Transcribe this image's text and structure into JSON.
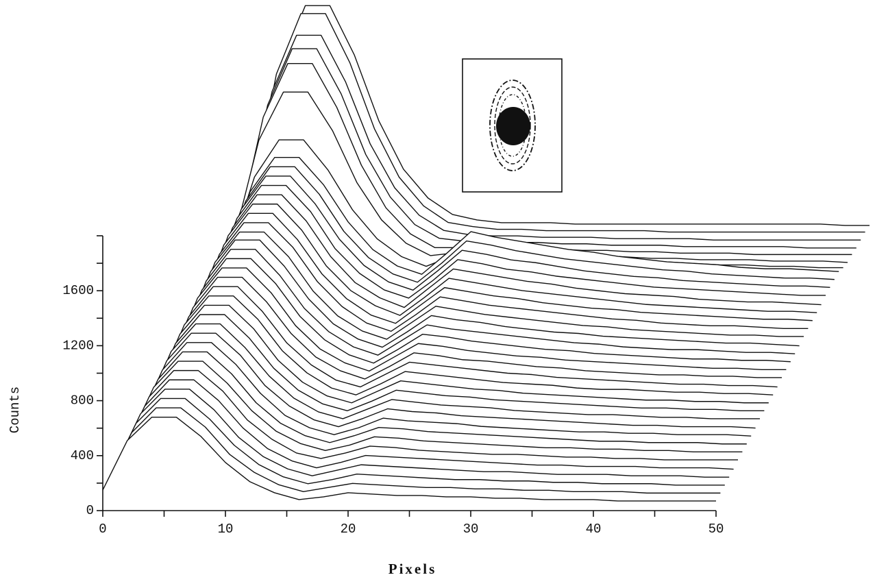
{
  "chart_data": {
    "type": "waterfall",
    "x_label": "Pixels",
    "y_label": "Counts",
    "color": "#111111",
    "xlim": [
      0,
      50
    ],
    "xticks": [
      0,
      10,
      20,
      30,
      40,
      50
    ],
    "xminor": [
      5,
      15,
      25,
      35,
      45
    ],
    "ylim": [
      0,
      2000
    ],
    "yticks": [
      0,
      400,
      800,
      1200,
      1600
    ],
    "yminor": [
      200,
      600,
      1000,
      1400,
      1800,
      2000
    ],
    "x": [
      0,
      2,
      4,
      6,
      8,
      10,
      12,
      14,
      16,
      18,
      20,
      22,
      24,
      26,
      28,
      30,
      32,
      34,
      36,
      38,
      40,
      42,
      44,
      46,
      48,
      50
    ],
    "series": [
      {
        "values": [
          150,
          510,
          680,
          680,
          540,
          350,
          210,
          130,
          80,
          100,
          130,
          120,
          110,
          110,
          100,
          100,
          90,
          90,
          80,
          80,
          80,
          70,
          70,
          70,
          70,
          70
        ]
      },
      {
        "values": [
          150,
          510,
          690,
          690,
          550,
          350,
          220,
          130,
          80,
          110,
          140,
          130,
          120,
          110,
          110,
          100,
          100,
          90,
          90,
          80,
          80,
          80,
          70,
          70,
          70,
          70
        ]
      },
      {
        "values": [
          150,
          520,
          700,
          700,
          550,
          360,
          220,
          130,
          80,
          110,
          150,
          140,
          130,
          120,
          110,
          110,
          100,
          100,
          90,
          90,
          80,
          80,
          80,
          70,
          70,
          70
        ]
      },
      {
        "values": [
          150,
          530,
          710,
          710,
          560,
          360,
          220,
          130,
          80,
          120,
          160,
          150,
          140,
          130,
          120,
          110,
          110,
          100,
          90,
          90,
          90,
          80,
          80,
          80,
          70,
          70
        ]
      },
      {
        "values": [
          150,
          530,
          720,
          720,
          570,
          370,
          220,
          130,
          80,
          120,
          170,
          160,
          150,
          140,
          130,
          120,
          110,
          100,
          100,
          90,
          90,
          90,
          80,
          80,
          80,
          70
        ]
      },
      {
        "values": [
          160,
          540,
          730,
          730,
          580,
          370,
          230,
          130,
          90,
          130,
          180,
          170,
          150,
          140,
          130,
          120,
          120,
          110,
          100,
          100,
          90,
          90,
          80,
          80,
          80,
          80
        ]
      },
      {
        "values": [
          160,
          550,
          740,
          740,
          580,
          380,
          230,
          140,
          90,
          130,
          190,
          180,
          160,
          150,
          140,
          130,
          120,
          110,
          110,
          100,
          100,
          90,
          90,
          80,
          80,
          80
        ]
      },
      {
        "values": [
          160,
          550,
          750,
          750,
          590,
          380,
          230,
          140,
          90,
          140,
          200,
          190,
          170,
          160,
          150,
          140,
          130,
          120,
          110,
          100,
          100,
          90,
          90,
          90,
          80,
          80
        ]
      },
      {
        "values": [
          160,
          560,
          760,
          760,
          600,
          390,
          230,
          140,
          90,
          140,
          210,
          190,
          180,
          170,
          150,
          140,
          130,
          120,
          110,
          110,
          100,
          100,
          90,
          90,
          90,
          80
        ]
      },
      {
        "values": [
          160,
          570,
          770,
          770,
          610,
          390,
          240,
          140,
          90,
          150,
          220,
          200,
          190,
          170,
          160,
          150,
          140,
          130,
          120,
          110,
          100,
          100,
          90,
          90,
          90,
          80
        ]
      },
      {
        "values": [
          160,
          580,
          780,
          780,
          610,
          400,
          240,
          140,
          90,
          160,
          230,
          210,
          190,
          180,
          170,
          150,
          140,
          130,
          120,
          120,
          110,
          100,
          100,
          90,
          90,
          90
        ]
      },
      {
        "values": [
          160,
          580,
          790,
          790,
          620,
          400,
          240,
          140,
          90,
          160,
          240,
          220,
          200,
          190,
          170,
          160,
          150,
          140,
          130,
          120,
          110,
          110,
          100,
          100,
          90,
          90
        ]
      },
      {
        "values": [
          170,
          590,
          800,
          800,
          630,
          400,
          240,
          140,
          90,
          170,
          250,
          230,
          210,
          190,
          180,
          160,
          150,
          140,
          130,
          120,
          110,
          110,
          100,
          100,
          90,
          90
        ]
      },
      {
        "values": [
          170,
          600,
          810,
          810,
          640,
          410,
          250,
          140,
          90,
          170,
          260,
          240,
          220,
          200,
          180,
          170,
          160,
          140,
          130,
          130,
          120,
          110,
          110,
          100,
          100,
          90
        ]
      },
      {
        "values": [
          170,
          600,
          820,
          820,
          640,
          410,
          250,
          140,
          90,
          180,
          270,
          250,
          230,
          210,
          190,
          180,
          160,
          150,
          140,
          130,
          120,
          110,
          110,
          100,
          100,
          90
        ]
      },
      {
        "values": [
          170,
          610,
          830,
          830,
          650,
          420,
          250,
          150,
          90,
          180,
          280,
          260,
          230,
          220,
          200,
          180,
          170,
          150,
          140,
          130,
          120,
          120,
          110,
          110,
          100,
          100
        ]
      },
      {
        "values": [
          170,
          620,
          840,
          840,
          660,
          420,
          250,
          150,
          90,
          190,
          290,
          270,
          240,
          220,
          200,
          190,
          170,
          160,
          150,
          140,
          130,
          120,
          110,
          110,
          100,
          100
        ]
      },
      {
        "values": [
          170,
          620,
          850,
          850,
          670,
          430,
          260,
          150,
          90,
          190,
          300,
          280,
          250,
          230,
          210,
          190,
          180,
          160,
          150,
          140,
          130,
          120,
          120,
          110,
          110,
          100
        ]
      },
      {
        "values": [
          170,
          630,
          860,
          860,
          670,
          430,
          260,
          150,
          90,
          200,
          310,
          280,
          260,
          240,
          220,
          200,
          180,
          170,
          150,
          140,
          130,
          130,
          120,
          110,
          110,
          100
        ]
      },
      {
        "values": [
          180,
          640,
          870,
          870,
          680,
          440,
          260,
          150,
          90,
          200,
          320,
          290,
          270,
          240,
          220,
          200,
          190,
          170,
          160,
          150,
          140,
          130,
          120,
          120,
          110,
          100
        ]
      },
      {
        "values": [
          180,
          650,
          870,
          870,
          690,
          440,
          260,
          150,
          90,
          210,
          330,
          300,
          270,
          250,
          230,
          210,
          190,
          180,
          160,
          150,
          140,
          130,
          120,
          120,
          110,
          110
        ]
      },
      {
        "values": [
          180,
          650,
          880,
          880,
          700,
          450,
          270,
          150,
          90,
          210,
          340,
          310,
          280,
          260,
          240,
          220,
          200,
          180,
          170,
          150,
          140,
          130,
          130,
          120,
          110,
          110
        ]
      },
      {
        "values": [
          180,
          660,
          890,
          890,
          700,
          450,
          270,
          150,
          90,
          220,
          350,
          320,
          290,
          270,
          240,
          220,
          200,
          190,
          170,
          160,
          150,
          140,
          130,
          120,
          120,
          110
        ]
      },
      {
        "values": [
          180,
          670,
          900,
          900,
          710,
          450,
          270,
          160,
          90,
          220,
          360,
          330,
          300,
          270,
          250,
          230,
          210,
          190,
          170,
          160,
          150,
          140,
          130,
          120,
          120,
          110
        ]
      },
      {
        "values": [
          180,
          670,
          910,
          910,
          720,
          460,
          270,
          160,
          90,
          230,
          370,
          340,
          310,
          280,
          260,
          230,
          210,
          190,
          180,
          170,
          150,
          140,
          130,
          130,
          120,
          110
        ]
      },
      {
        "values": [
          190,
          680,
          920,
          920,
          730,
          460,
          280,
          160,
          100,
          230,
          380,
          350,
          310,
          290,
          260,
          240,
          220,
          200,
          180,
          170,
          160,
          150,
          140,
          130,
          120,
          120
        ]
      },
      {
        "values": [
          190,
          690,
          930,
          930,
          730,
          470,
          280,
          160,
          100,
          240,
          390,
          360,
          320,
          300,
          270,
          240,
          220,
          200,
          190,
          170,
          160,
          150,
          140,
          130,
          130,
          120
        ]
      },
      {
        "values": [
          190,
          690,
          940,
          940,
          740,
          470,
          280,
          160,
          100,
          240,
          400,
          370,
          330,
          300,
          270,
          250,
          230,
          210,
          190,
          180,
          160,
          150,
          140,
          130,
          130,
          120
        ]
      },
      {
        "values": [
          190,
          700,
          950,
          950,
          750,
          480,
          280,
          160,
          100,
          250,
          410,
          370,
          340,
          310,
          280,
          260,
          230,
          210,
          190,
          180,
          170,
          150,
          140,
          140,
          130,
          120
        ]
      },
      {
        "values": [
          200,
          750,
          1020,
          1020,
          800,
          510,
          300,
          170,
          100,
          170,
          250,
          230,
          210,
          190,
          180,
          160,
          150,
          140,
          130,
          120,
          110,
          110,
          100,
          100,
          90,
          90
        ]
      },
      {
        "values": [
          250,
          960,
          1310,
          1310,
          1030,
          650,
          380,
          210,
          120,
          140,
          170,
          160,
          150,
          140,
          130,
          120,
          110,
          100,
          100,
          90,
          90,
          90,
          80,
          80,
          80,
          70
        ]
      },
      {
        "values": [
          270,
          1070,
          1460,
          1460,
          1140,
          720,
          410,
          220,
          120,
          120,
          130,
          120,
          110,
          110,
          100,
          100,
          90,
          90,
          80,
          80,
          80,
          70,
          70,
          70,
          70,
          70
        ]
      },
      {
        "values": [
          280,
          1100,
          1510,
          1510,
          1180,
          740,
          430,
          230,
          130,
          110,
          110,
          100,
          100,
          90,
          90,
          80,
          80,
          80,
          70,
          70,
          70,
          70,
          70,
          60,
          60,
          60
        ]
      },
      {
        "values": [
          280,
          1140,
          1550,
          1550,
          1210,
          760,
          440,
          240,
          130,
          100,
          90,
          90,
          80,
          80,
          80,
          70,
          70,
          70,
          70,
          60,
          60,
          60,
          60,
          60,
          60,
          60
        ]
      },
      {
        "values": [
          300,
          1210,
          1650,
          1650,
          1290,
          810,
          460,
          250,
          130,
          100,
          80,
          80,
          70,
          70,
          70,
          70,
          70,
          60,
          60,
          60,
          60,
          60,
          60,
          60,
          60,
          60
        ]
      },
      {
        "values": [
          300,
          1210,
          1650,
          1650,
          1290,
          810,
          460,
          250,
          130,
          90,
          70,
          70,
          70,
          60,
          60,
          60,
          60,
          60,
          60,
          60,
          60,
          60,
          60,
          60,
          50,
          50
        ]
      }
    ]
  }
}
